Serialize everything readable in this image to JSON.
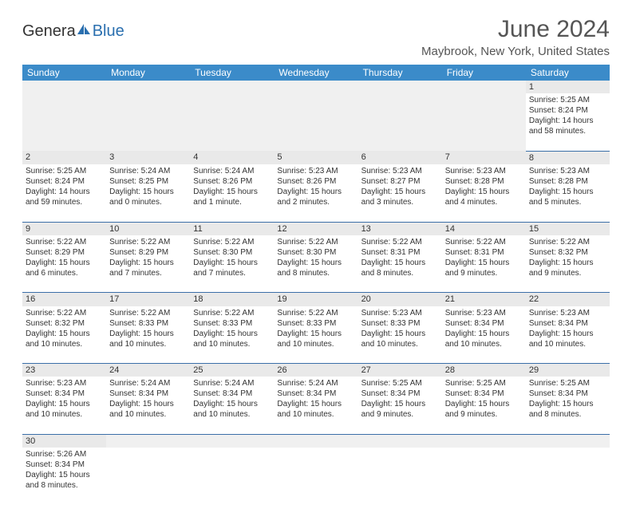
{
  "logo": {
    "part1": "Genera",
    "part2": "Blue"
  },
  "title": "June 2024",
  "location": "Maybrook, New York, United States",
  "header_bg": "#3b8bc9",
  "rule_color": "#3b6fa8",
  "shade_bg": "#e9e9e9",
  "empty_bg": "#f0f0f0",
  "days": [
    "Sunday",
    "Monday",
    "Tuesday",
    "Wednesday",
    "Thursday",
    "Friday",
    "Saturday"
  ],
  "weeks": [
    [
      null,
      null,
      null,
      null,
      null,
      null,
      {
        "n": "1",
        "sr": "5:25 AM",
        "ss": "8:24 PM",
        "dl": "14 hours and 58 minutes."
      }
    ],
    [
      {
        "n": "2",
        "sr": "5:25 AM",
        "ss": "8:24 PM",
        "dl": "14 hours and 59 minutes."
      },
      {
        "n": "3",
        "sr": "5:24 AM",
        "ss": "8:25 PM",
        "dl": "15 hours and 0 minutes."
      },
      {
        "n": "4",
        "sr": "5:24 AM",
        "ss": "8:26 PM",
        "dl": "15 hours and 1 minute."
      },
      {
        "n": "5",
        "sr": "5:23 AM",
        "ss": "8:26 PM",
        "dl": "15 hours and 2 minutes."
      },
      {
        "n": "6",
        "sr": "5:23 AM",
        "ss": "8:27 PM",
        "dl": "15 hours and 3 minutes."
      },
      {
        "n": "7",
        "sr": "5:23 AM",
        "ss": "8:28 PM",
        "dl": "15 hours and 4 minutes."
      },
      {
        "n": "8",
        "sr": "5:23 AM",
        "ss": "8:28 PM",
        "dl": "15 hours and 5 minutes."
      }
    ],
    [
      {
        "n": "9",
        "sr": "5:22 AM",
        "ss": "8:29 PM",
        "dl": "15 hours and 6 minutes."
      },
      {
        "n": "10",
        "sr": "5:22 AM",
        "ss": "8:29 PM",
        "dl": "15 hours and 7 minutes."
      },
      {
        "n": "11",
        "sr": "5:22 AM",
        "ss": "8:30 PM",
        "dl": "15 hours and 7 minutes."
      },
      {
        "n": "12",
        "sr": "5:22 AM",
        "ss": "8:30 PM",
        "dl": "15 hours and 8 minutes."
      },
      {
        "n": "13",
        "sr": "5:22 AM",
        "ss": "8:31 PM",
        "dl": "15 hours and 8 minutes."
      },
      {
        "n": "14",
        "sr": "5:22 AM",
        "ss": "8:31 PM",
        "dl": "15 hours and 9 minutes."
      },
      {
        "n": "15",
        "sr": "5:22 AM",
        "ss": "8:32 PM",
        "dl": "15 hours and 9 minutes."
      }
    ],
    [
      {
        "n": "16",
        "sr": "5:22 AM",
        "ss": "8:32 PM",
        "dl": "15 hours and 10 minutes."
      },
      {
        "n": "17",
        "sr": "5:22 AM",
        "ss": "8:33 PM",
        "dl": "15 hours and 10 minutes."
      },
      {
        "n": "18",
        "sr": "5:22 AM",
        "ss": "8:33 PM",
        "dl": "15 hours and 10 minutes."
      },
      {
        "n": "19",
        "sr": "5:22 AM",
        "ss": "8:33 PM",
        "dl": "15 hours and 10 minutes."
      },
      {
        "n": "20",
        "sr": "5:23 AM",
        "ss": "8:33 PM",
        "dl": "15 hours and 10 minutes."
      },
      {
        "n": "21",
        "sr": "5:23 AM",
        "ss": "8:34 PM",
        "dl": "15 hours and 10 minutes."
      },
      {
        "n": "22",
        "sr": "5:23 AM",
        "ss": "8:34 PM",
        "dl": "15 hours and 10 minutes."
      }
    ],
    [
      {
        "n": "23",
        "sr": "5:23 AM",
        "ss": "8:34 PM",
        "dl": "15 hours and 10 minutes."
      },
      {
        "n": "24",
        "sr": "5:24 AM",
        "ss": "8:34 PM",
        "dl": "15 hours and 10 minutes."
      },
      {
        "n": "25",
        "sr": "5:24 AM",
        "ss": "8:34 PM",
        "dl": "15 hours and 10 minutes."
      },
      {
        "n": "26",
        "sr": "5:24 AM",
        "ss": "8:34 PM",
        "dl": "15 hours and 10 minutes."
      },
      {
        "n": "27",
        "sr": "5:25 AM",
        "ss": "8:34 PM",
        "dl": "15 hours and 9 minutes."
      },
      {
        "n": "28",
        "sr": "5:25 AM",
        "ss": "8:34 PM",
        "dl": "15 hours and 9 minutes."
      },
      {
        "n": "29",
        "sr": "5:25 AM",
        "ss": "8:34 PM",
        "dl": "15 hours and 8 minutes."
      }
    ],
    [
      {
        "n": "30",
        "sr": "5:26 AM",
        "ss": "8:34 PM",
        "dl": "15 hours and 8 minutes."
      },
      null,
      null,
      null,
      null,
      null,
      null
    ]
  ],
  "labels": {
    "sunrise": "Sunrise:",
    "sunset": "Sunset:",
    "daylight": "Daylight:"
  }
}
